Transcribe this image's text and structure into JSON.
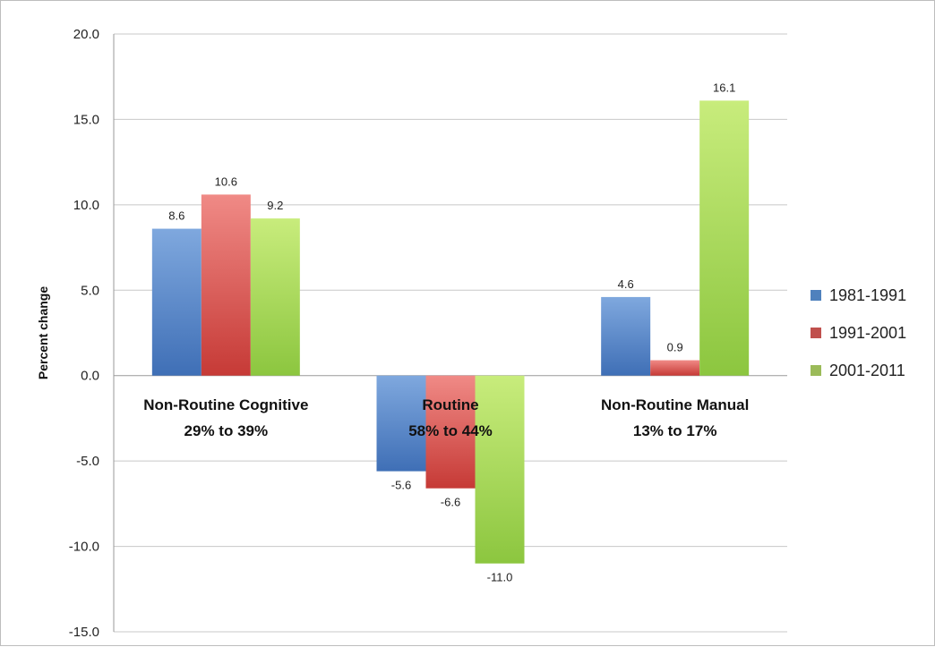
{
  "chart_data": {
    "type": "bar",
    "title": "",
    "xlabel": "",
    "ylabel": "Percent change",
    "ylim": [
      -15,
      20
    ],
    "yticks": [
      20,
      15,
      10,
      5,
      0,
      -5,
      -10,
      -15
    ],
    "ytick_labels": [
      "20.0",
      "15.0",
      "10.0",
      "5.0",
      "0.0",
      "-5.0",
      "-10.0",
      "-15.0"
    ],
    "categories": [
      {
        "line1": "Non-Routine Cognitive",
        "line2": "29% to 39%"
      },
      {
        "line1": "Routine",
        "line2": "58% to 44%"
      },
      {
        "line1": "Non-Routine Manual",
        "line2": "13% to 17%"
      }
    ],
    "series": [
      {
        "name": "1981-1991",
        "color": "#4f81bd",
        "values": [
          8.6,
          -5.6,
          4.6
        ],
        "labels": [
          "8.6",
          "-5.6",
          "4.6"
        ]
      },
      {
        "name": "1991-2001",
        "color": "#c0504d",
        "values": [
          10.6,
          -6.6,
          0.9
        ],
        "labels": [
          "10.6",
          "-6.6",
          "0.9"
        ]
      },
      {
        "name": "2001-2011",
        "color": "#9bbb59",
        "values": [
          9.2,
          -11.0,
          16.1
        ],
        "labels": [
          "9.2",
          "-11.0",
          "16.1"
        ]
      }
    ],
    "grid": true,
    "legend_position": "right"
  }
}
